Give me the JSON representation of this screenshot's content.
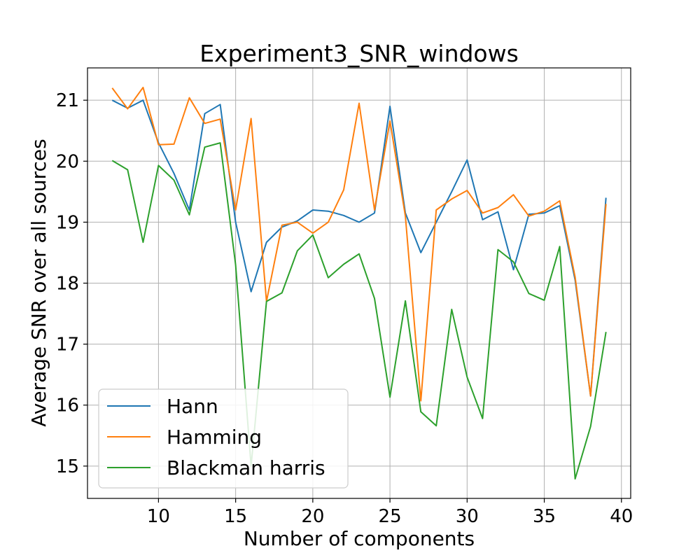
{
  "chart_data": {
    "type": "line",
    "title": "Experiment3_SNR_windows",
    "xlabel": "Number of components",
    "ylabel": "Average SNR over all sources",
    "xlim": [
      5.4,
      40.6
    ],
    "ylim": [
      14.47,
      21.53
    ],
    "xticks": [
      10,
      15,
      20,
      25,
      30,
      35,
      40
    ],
    "yticks": [
      15,
      16,
      17,
      18,
      19,
      20,
      21
    ],
    "grid": true,
    "legend_position": "lower-left",
    "x": [
      7,
      8,
      9,
      10,
      11,
      12,
      13,
      14,
      15,
      16,
      17,
      18,
      19,
      20,
      21,
      22,
      23,
      24,
      25,
      26,
      27,
      28,
      29,
      30,
      31,
      32,
      33,
      34,
      35,
      36,
      37,
      38,
      39
    ],
    "series": [
      {
        "name": "Hann",
        "color": "#1f77b4",
        "values": [
          21.0,
          20.87,
          21.0,
          20.3,
          19.8,
          19.2,
          20.78,
          20.93,
          19.0,
          17.86,
          18.67,
          18.92,
          19.02,
          19.2,
          19.18,
          19.11,
          19.0,
          19.15,
          20.9,
          19.15,
          18.5,
          19.0,
          19.5,
          20.02,
          19.04,
          19.17,
          18.22,
          19.13,
          19.15,
          19.27,
          18.05,
          16.15,
          19.4
        ]
      },
      {
        "name": "Hamming",
        "color": "#ff7f0e",
        "values": [
          21.2,
          20.86,
          21.21,
          20.27,
          20.28,
          21.04,
          20.62,
          20.69,
          19.2,
          20.7,
          17.7,
          18.95,
          19.0,
          18.82,
          19.0,
          19.53,
          20.95,
          19.2,
          20.66,
          19.1,
          16.07,
          19.2,
          19.38,
          19.52,
          19.15,
          19.24,
          19.45,
          19.1,
          19.18,
          19.35,
          18.1,
          16.15,
          19.3
        ]
      },
      {
        "name": "Blackman harris",
        "color": "#2ca02c",
        "values": [
          20.01,
          19.86,
          18.67,
          19.93,
          19.69,
          19.12,
          20.23,
          20.3,
          18.3,
          15.0,
          17.7,
          17.84,
          18.53,
          18.79,
          18.09,
          18.31,
          18.48,
          17.75,
          16.13,
          17.71,
          15.89,
          15.66,
          17.57,
          16.46,
          15.78,
          18.55,
          18.35,
          17.83,
          17.72,
          18.6,
          14.79,
          15.65,
          17.2
        ]
      }
    ]
  }
}
